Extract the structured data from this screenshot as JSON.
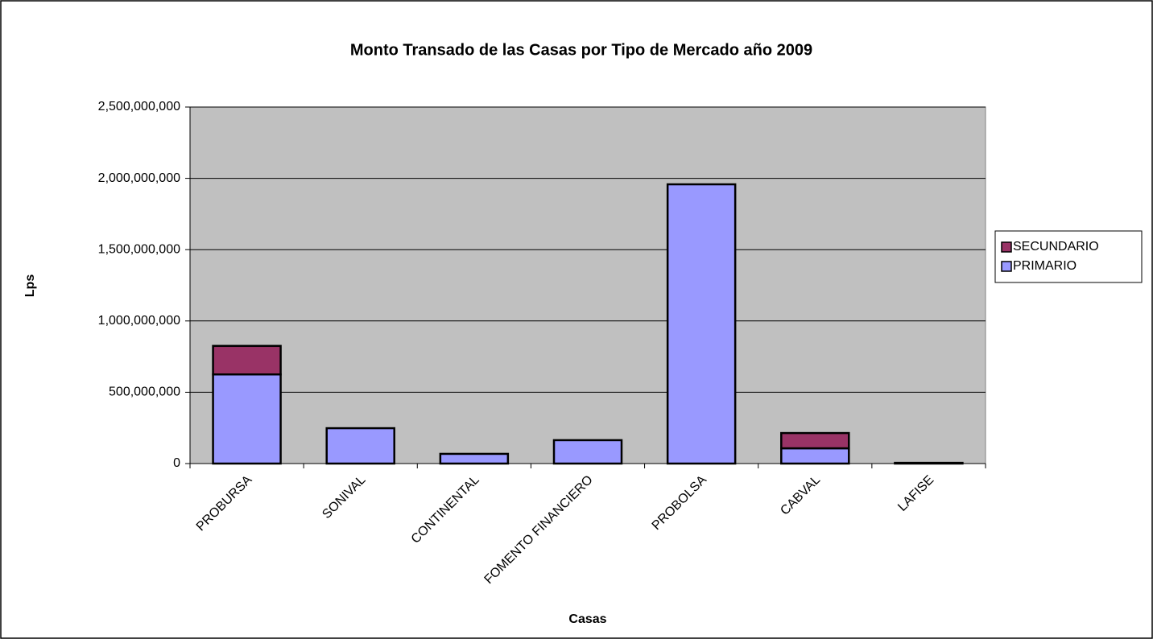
{
  "chart_data": {
    "type": "bar",
    "stacked": true,
    "title": "Monto Transado de las Casas por Tipo de Mercado año 2009",
    "x_label": "Casas",
    "y_label": "Lps",
    "categories": [
      "PROBURSA",
      "SONIVAL",
      "CONTINENTAL",
      "FOMENTO FINANCIERO",
      "PROBOLSA",
      "CABVAL",
      "LAFISE"
    ],
    "series": [
      {
        "name": "PRIMARIO",
        "color": "#9999ff",
        "values": [
          625000000,
          248000000,
          68000000,
          164000000,
          1958000000,
          107000000,
          5000000
        ]
      },
      {
        "name": "SECUNDARIO",
        "color": "#993366",
        "values": [
          200000000,
          0,
          0,
          0,
          0,
          107000000,
          0
        ]
      }
    ],
    "ylim": [
      0,
      2500000000
    ],
    "yticks": [
      0,
      {
        "value": 500000000,
        "label": "500,000,000"
      },
      {
        "value": 1000000000,
        "label": "1,000,000,000"
      },
      {
        "value": 1500000000,
        "label": "1,500,000,000"
      },
      {
        "value": 2000000000,
        "label": "2,000,000,000"
      },
      {
        "value": 2500000000,
        "label": "2,500,000,000"
      }
    ],
    "grid": true,
    "legend": "right"
  }
}
